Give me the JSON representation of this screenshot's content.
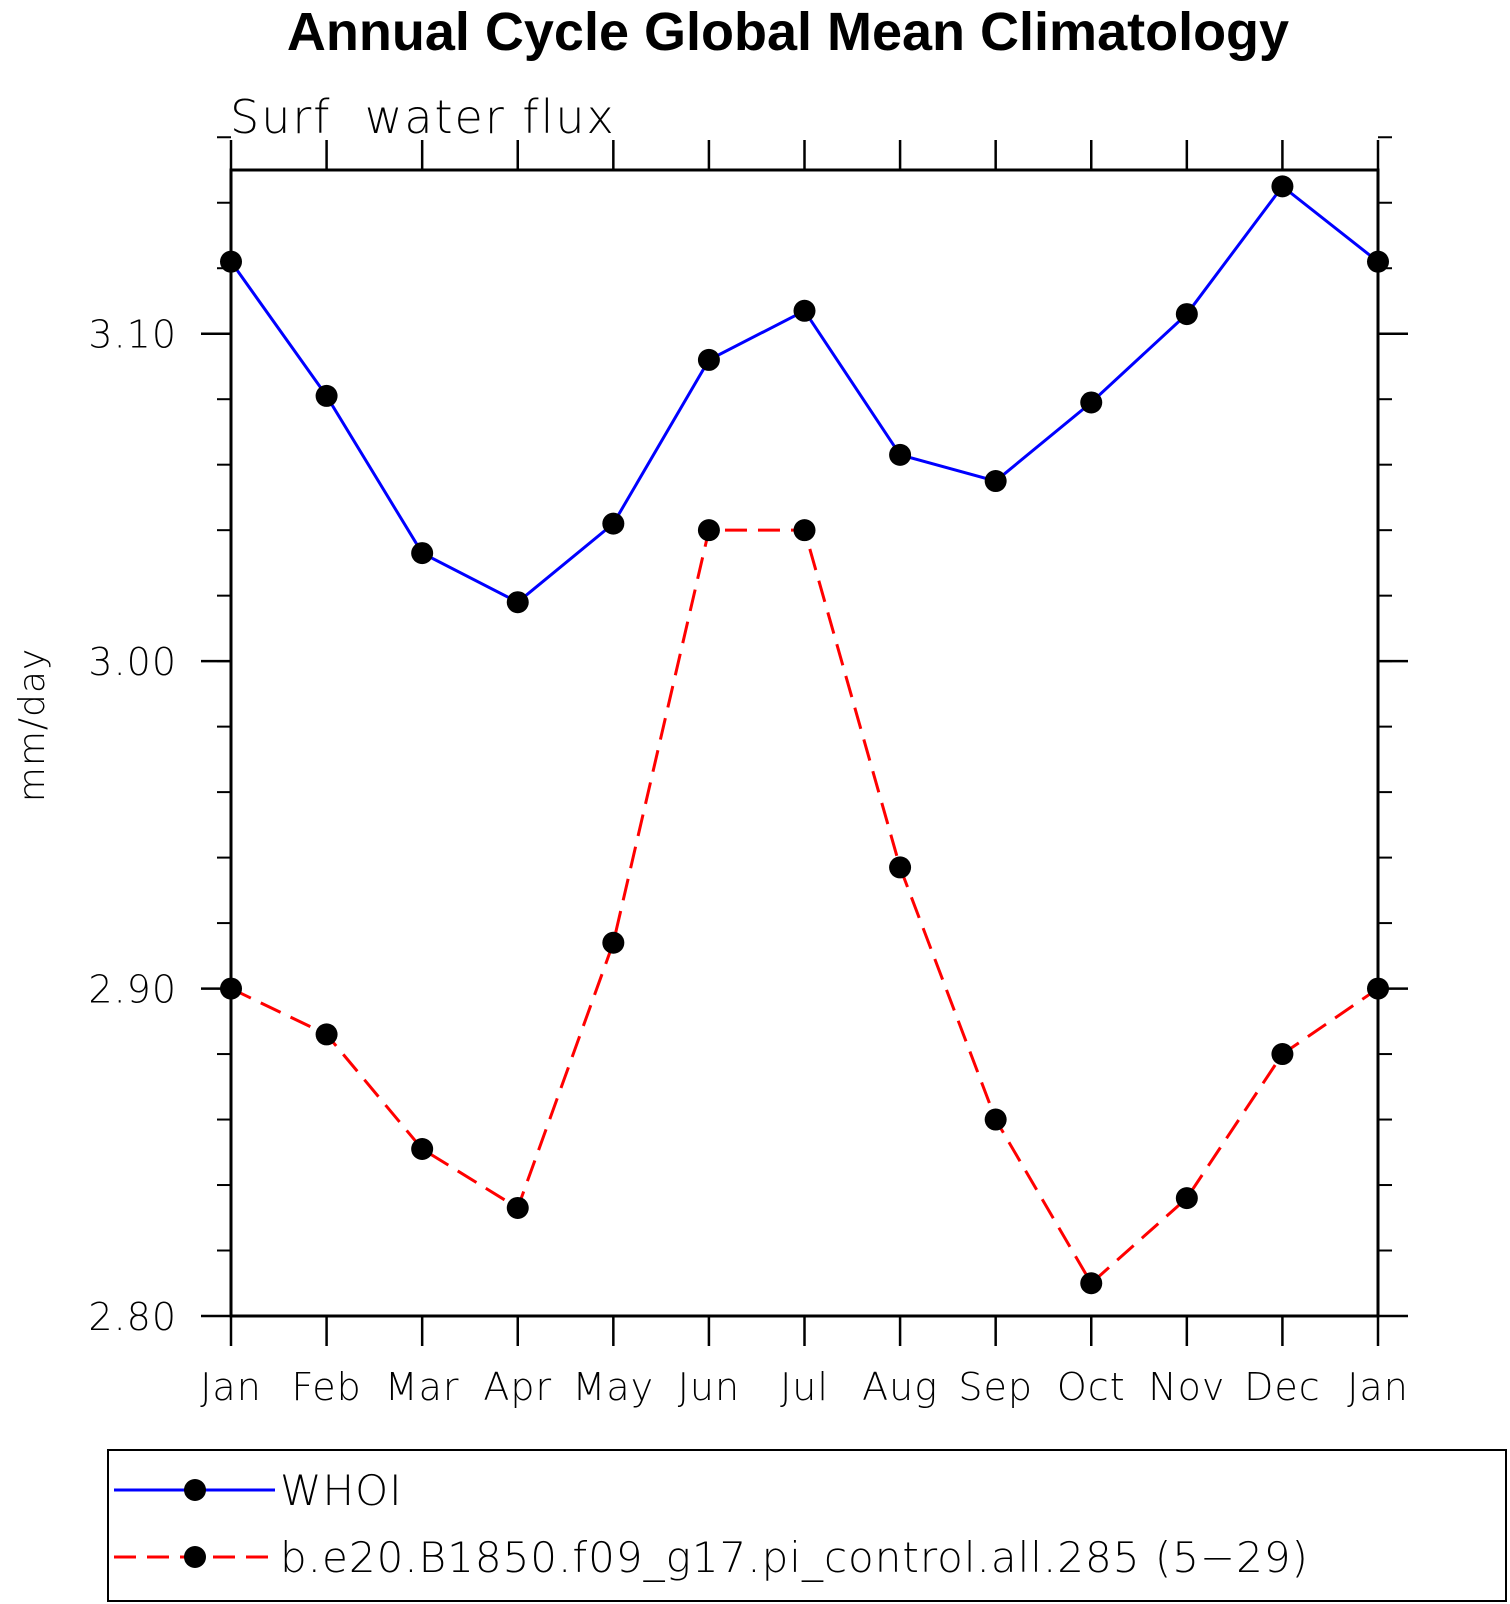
{
  "chart_data": {
    "type": "line",
    "title": "Annual Cycle Global Mean Climatology",
    "subtitle": "Surf  water flux",
    "xlabel": "",
    "ylabel": "mm/day",
    "categories": [
      "Jan",
      "Feb",
      "Mar",
      "Apr",
      "May",
      "Jun",
      "Jul",
      "Aug",
      "Sep",
      "Oct",
      "Nov",
      "Dec",
      "Jan"
    ],
    "ylim": [
      2.8,
      3.15
    ],
    "yticks": [
      "2.80",
      "2.90",
      "3.00",
      "3.10"
    ],
    "ytick_values": [
      2.8,
      2.9,
      3.0,
      3.1
    ],
    "y_minor_step": 0.02,
    "series": [
      {
        "name": "WHOI",
        "color": "#0000ff",
        "style": "solid",
        "marker": "filled-circle",
        "values": [
          3.122,
          3.081,
          3.033,
          3.018,
          3.042,
          3.092,
          3.107,
          3.063,
          3.055,
          3.079,
          3.106,
          3.145,
          3.122
        ]
      },
      {
        "name": "b.e20.B1850.f09_g17.pi_control.all.285 (5−29)",
        "color": "#ff0000",
        "style": "dashed",
        "marker": "filled-circle",
        "values": [
          2.9,
          2.886,
          2.851,
          2.833,
          2.914,
          3.04,
          3.04,
          2.937,
          2.86,
          2.81,
          2.836,
          2.88,
          2.9
        ]
      }
    ],
    "grid": false,
    "legend": "bottom"
  }
}
